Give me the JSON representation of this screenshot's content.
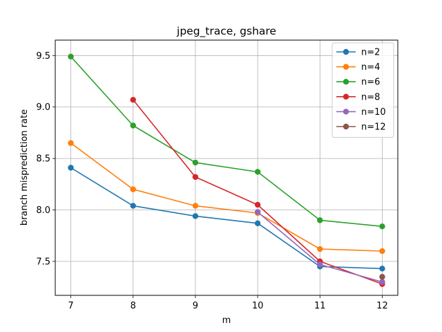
{
  "chart_data": {
    "type": "line",
    "title": "jpeg_trace, gshare",
    "xlabel": "m",
    "ylabel": "branch misprediction rate",
    "xlim": [
      6.75,
      12.25
    ],
    "ylim": [
      7.17,
      9.65
    ],
    "xticks": [
      7,
      8,
      9,
      10,
      11,
      12
    ],
    "yticks": [
      7.5,
      8.0,
      8.5,
      9.0,
      9.5
    ],
    "ytick_labels": [
      "7.5",
      "8.0",
      "8.5",
      "9.0",
      "9.5"
    ],
    "grid": true,
    "legend_position": "top-right",
    "series": [
      {
        "name": "n=2",
        "color": "#1f77b4",
        "x": [
          7,
          8,
          9,
          10,
          11,
          12
        ],
        "y": [
          8.41,
          8.04,
          7.94,
          7.87,
          7.45,
          7.43
        ]
      },
      {
        "name": "n=4",
        "color": "#ff7f0e",
        "x": [
          7,
          8,
          9,
          10,
          11,
          12
        ],
        "y": [
          8.65,
          8.2,
          8.04,
          7.97,
          7.62,
          7.6
        ]
      },
      {
        "name": "n=6",
        "color": "#2ca02c",
        "x": [
          7,
          8,
          9,
          10,
          11,
          12
        ],
        "y": [
          9.49,
          8.82,
          8.46,
          8.37,
          7.9,
          7.84
        ]
      },
      {
        "name": "n=8",
        "color": "#d62728",
        "x": [
          8,
          9,
          10,
          11,
          12
        ],
        "y": [
          9.07,
          8.32,
          8.05,
          7.5,
          7.28
        ]
      },
      {
        "name": "n=10",
        "color": "#9467bd",
        "x": [
          10,
          11,
          12
        ],
        "y": [
          7.98,
          7.47,
          7.3
        ]
      },
      {
        "name": "n=12",
        "color": "#8c564b",
        "x": [
          12
        ],
        "y": [
          7.35
        ]
      }
    ]
  }
}
